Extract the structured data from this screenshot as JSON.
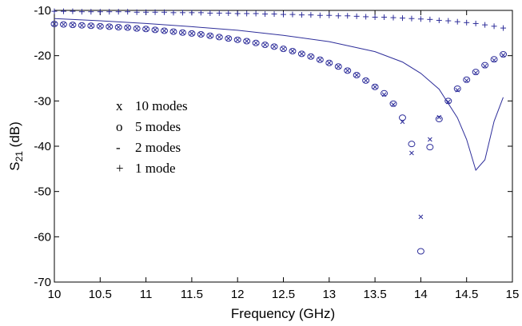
{
  "chart_data": {
    "type": "line",
    "title": "",
    "xlabel": "Frequency (GHz)",
    "ylabel_main": "S",
    "ylabel_sub": "21",
    "ylabel_tail": " (dB)",
    "xlim": [
      10,
      15
    ],
    "ylim": [
      -70,
      -10
    ],
    "xticks": [
      "10",
      "10.5",
      "11",
      "11.5",
      "12",
      "12.5",
      "13",
      "13.5",
      "14",
      "14.5",
      "15"
    ],
    "yticks": [
      "-10",
      "-20",
      "-30",
      "-40",
      "-50",
      "-60",
      "-70"
    ],
    "grid": false,
    "legend_position": "center-left",
    "color": "#2e2e9a",
    "legend": [
      {
        "marker": "x",
        "label": "10 modes"
      },
      {
        "marker": "o",
        "label": "5 modes"
      },
      {
        "marker": "-",
        "label": "2 modes"
      },
      {
        "marker": "+",
        "label": "1 mode"
      }
    ],
    "series": [
      {
        "marker": "x",
        "x": [
          10,
          10.1,
          10.2,
          10.3,
          10.4,
          10.5,
          10.6,
          10.7,
          10.8,
          10.9,
          11,
          11.1,
          11.2,
          11.3,
          11.4,
          11.5,
          11.6,
          11.7,
          11.8,
          11.9,
          12,
          12.1,
          12.2,
          12.3,
          12.4,
          12.5,
          12.6,
          12.7,
          12.8,
          12.9,
          13,
          13.1,
          13.2,
          13.3,
          13.4,
          13.5,
          13.6,
          13.7,
          13.8,
          13.9,
          14,
          14.1,
          14.2,
          14.3,
          14.4,
          14.5,
          14.6,
          14.7,
          14.8,
          14.9
        ],
        "y": [
          -13.0,
          -13.1,
          -13.2,
          -13.3,
          -13.4,
          -13.5,
          -13.6,
          -13.7,
          -13.8,
          -14.0,
          -14.1,
          -14.3,
          -14.5,
          -14.7,
          -14.9,
          -15.1,
          -15.3,
          -15.6,
          -15.9,
          -16.2,
          -16.5,
          -16.8,
          -17.2,
          -17.6,
          -18.0,
          -18.5,
          -19.0,
          -19.6,
          -20.2,
          -20.9,
          -21.6,
          -22.4,
          -23.3,
          -24.3,
          -25.5,
          -26.9,
          -28.6,
          -30.8,
          -34.6,
          -41.5,
          -55.6,
          -38.5,
          -33.6,
          -30.2,
          -27.6,
          -25.5,
          -23.8,
          -22.3,
          -21.0,
          -19.9
        ]
      },
      {
        "marker": "o",
        "x": [
          10,
          10.1,
          10.2,
          10.3,
          10.4,
          10.5,
          10.6,
          10.7,
          10.8,
          10.9,
          11,
          11.1,
          11.2,
          11.3,
          11.4,
          11.5,
          11.6,
          11.7,
          11.8,
          11.9,
          12,
          12.1,
          12.2,
          12.3,
          12.4,
          12.5,
          12.6,
          12.7,
          12.8,
          12.9,
          13,
          13.1,
          13.2,
          13.3,
          13.4,
          13.5,
          13.6,
          13.7,
          13.8,
          13.9,
          14,
          14.1,
          14.2,
          14.3,
          14.4,
          14.5,
          14.6,
          14.7,
          14.8,
          14.9
        ],
        "y": [
          -13.0,
          -13.1,
          -13.2,
          -13.3,
          -13.4,
          -13.5,
          -13.6,
          -13.7,
          -13.8,
          -14.0,
          -14.1,
          -14.3,
          -14.5,
          -14.7,
          -14.9,
          -15.1,
          -15.3,
          -15.6,
          -15.9,
          -16.2,
          -16.5,
          -16.8,
          -17.2,
          -17.6,
          -18.0,
          -18.5,
          -19.0,
          -19.6,
          -20.2,
          -20.9,
          -21.6,
          -22.4,
          -23.3,
          -24.3,
          -25.5,
          -26.9,
          -28.3,
          -30.6,
          -33.7,
          -39.5,
          -63.2,
          -40.2,
          -34.0,
          -30.0,
          -27.3,
          -25.3,
          -23.6,
          -22.1,
          -20.8,
          -19.7
        ]
      },
      {
        "marker": "-",
        "x": [
          10,
          10.5,
          11,
          11.5,
          12,
          12.5,
          13,
          13.5,
          13.8,
          14,
          14.2,
          14.4,
          14.5,
          14.6,
          14.7,
          14.8,
          14.9
        ],
        "y": [
          -11.8,
          -12.3,
          -12.9,
          -13.6,
          -14.4,
          -15.5,
          -16.9,
          -19.1,
          -21.4,
          -23.9,
          -27.4,
          -33.7,
          -38.5,
          -45.3,
          -43.0,
          -34.5,
          -29.2
        ]
      },
      {
        "marker": "+",
        "x": [
          10,
          10.1,
          10.2,
          10.3,
          10.4,
          10.5,
          10.6,
          10.7,
          10.8,
          10.9,
          11,
          11.1,
          11.2,
          11.3,
          11.4,
          11.5,
          11.6,
          11.7,
          11.8,
          11.9,
          12,
          12.1,
          12.2,
          12.3,
          12.4,
          12.5,
          12.6,
          12.7,
          12.8,
          12.9,
          13,
          13.1,
          13.2,
          13.3,
          13.4,
          13.5,
          13.6,
          13.7,
          13.8,
          13.9,
          14,
          14.1,
          14.2,
          14.3,
          14.4,
          14.5,
          14.6,
          14.7,
          14.8,
          14.9
        ],
        "y": [
          -10.2,
          -10.2,
          -10.2,
          -10.3,
          -10.3,
          -10.3,
          -10.3,
          -10.3,
          -10.3,
          -10.4,
          -10.4,
          -10.4,
          -10.4,
          -10.5,
          -10.5,
          -10.5,
          -10.5,
          -10.6,
          -10.6,
          -10.6,
          -10.7,
          -10.7,
          -10.7,
          -10.8,
          -10.8,
          -10.9,
          -10.9,
          -11.0,
          -11.0,
          -11.1,
          -11.1,
          -11.2,
          -11.2,
          -11.3,
          -11.4,
          -11.5,
          -11.5,
          -11.6,
          -11.7,
          -11.8,
          -11.9,
          -12.0,
          -12.2,
          -12.3,
          -12.5,
          -12.7,
          -12.9,
          -13.2,
          -13.5,
          -13.9
        ]
      }
    ]
  }
}
